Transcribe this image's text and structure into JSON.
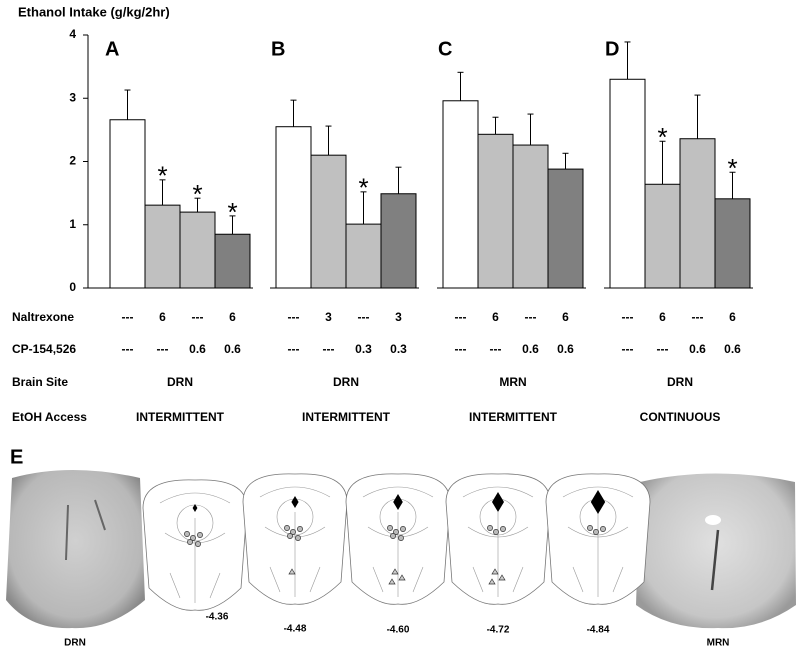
{
  "chart_data": [
    {
      "type": "bar",
      "panel": "A",
      "ylabel": "Ethanol Intake (g/kg/2hr)",
      "ylim": [
        0,
        4
      ],
      "yticks": [
        0,
        1,
        2,
        3,
        4
      ],
      "values": [
        2.66,
        1.31,
        1.2,
        0.85
      ],
      "errors": [
        0.47,
        0.4,
        0.22,
        0.29
      ],
      "colors": [
        "#ffffff",
        "#c0c0c0",
        "#c0c0c0",
        "#808080"
      ],
      "significance": [
        null,
        "*",
        "*",
        "*"
      ]
    },
    {
      "type": "bar",
      "panel": "B",
      "ylim": [
        0,
        4
      ],
      "values": [
        2.55,
        2.1,
        1.01,
        1.49
      ],
      "errors": [
        0.42,
        0.46,
        0.51,
        0.42
      ],
      "colors": [
        "#ffffff",
        "#c0c0c0",
        "#c0c0c0",
        "#808080"
      ],
      "significance": [
        null,
        null,
        "*",
        null
      ]
    },
    {
      "type": "bar",
      "panel": "C",
      "ylim": [
        0,
        4
      ],
      "values": [
        2.96,
        2.43,
        2.26,
        1.88
      ],
      "errors": [
        0.45,
        0.27,
        0.49,
        0.25
      ],
      "colors": [
        "#ffffff",
        "#c0c0c0",
        "#c0c0c0",
        "#808080"
      ],
      "significance": [
        null,
        null,
        null,
        null
      ]
    },
    {
      "type": "bar",
      "panel": "D",
      "ylim": [
        0,
        4
      ],
      "values": [
        3.3,
        1.64,
        2.36,
        1.41
      ],
      "errors": [
        0.59,
        0.68,
        0.69,
        0.42
      ],
      "colors": [
        "#ffffff",
        "#c0c0c0",
        "#c0c0c0",
        "#808080"
      ],
      "significance": [
        null,
        "*",
        null,
        "*"
      ]
    }
  ],
  "treatment_table": {
    "row_labels": [
      "Naltrexone",
      "CP-154,526",
      "Brain Site",
      "EtOH Access"
    ],
    "naltrexone": [
      [
        "---",
        "6",
        "---",
        "6"
      ],
      [
        "---",
        "3",
        "---",
        "3"
      ],
      [
        "---",
        "6",
        "---",
        "6"
      ],
      [
        "---",
        "6",
        "---",
        "6"
      ]
    ],
    "cp_154526": [
      [
        "---",
        "---",
        "0.6",
        "0.6"
      ],
      [
        "---",
        "---",
        "0.3",
        "0.3"
      ],
      [
        "---",
        "---",
        "0.6",
        "0.6"
      ],
      [
        "---",
        "---",
        "0.6",
        "0.6"
      ]
    ],
    "brain_site": [
      "DRN",
      "DRN",
      "MRN",
      "DRN"
    ],
    "etoh_access": [
      "INTERMITTENT",
      "INTERMITTENT",
      "INTERMITTENT",
      "CONTINUOUS"
    ]
  },
  "panel_e": {
    "label": "E",
    "left_image_label": "DRN",
    "right_image_label": "MRN",
    "section_labels": [
      "-4.36",
      "-4.48",
      "-4.60",
      "-4.72",
      "-4.84"
    ]
  }
}
